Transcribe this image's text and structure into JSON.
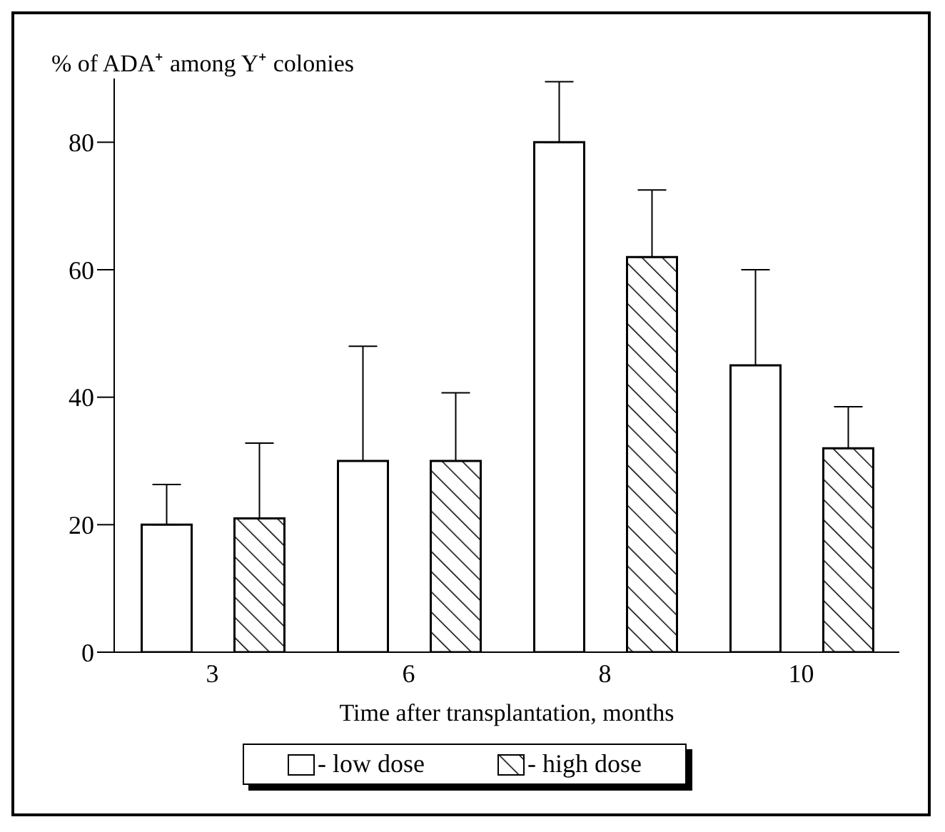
{
  "chart_data": {
    "type": "bar",
    "ylabel": "% of ADA⁺ among Y⁺ colonies",
    "xlabel": "Time after transplantation, months",
    "categories": [
      "3",
      "6",
      "8",
      "10"
    ],
    "series": [
      {
        "name": "- low dose",
        "color": "#000000",
        "values": [
          20,
          30,
          80,
          45
        ],
        "errors": [
          [
            20,
            26.3
          ],
          [
            30,
            48
          ],
          [
            80,
            89.5
          ],
          [
            45,
            60
          ]
        ]
      },
      {
        "name": "- high dose",
        "color": "#000000",
        "values": [
          21,
          30,
          62,
          32
        ],
        "errors": [
          [
            21,
            32.8
          ],
          [
            30,
            40.7
          ],
          [
            62,
            72.5
          ],
          [
            32,
            38.5
          ]
        ]
      }
    ],
    "ylim": [
      0,
      90
    ],
    "yticks": [
      0,
      20,
      40,
      60,
      80
    ],
    "grid": false,
    "legend": "bottom"
  }
}
